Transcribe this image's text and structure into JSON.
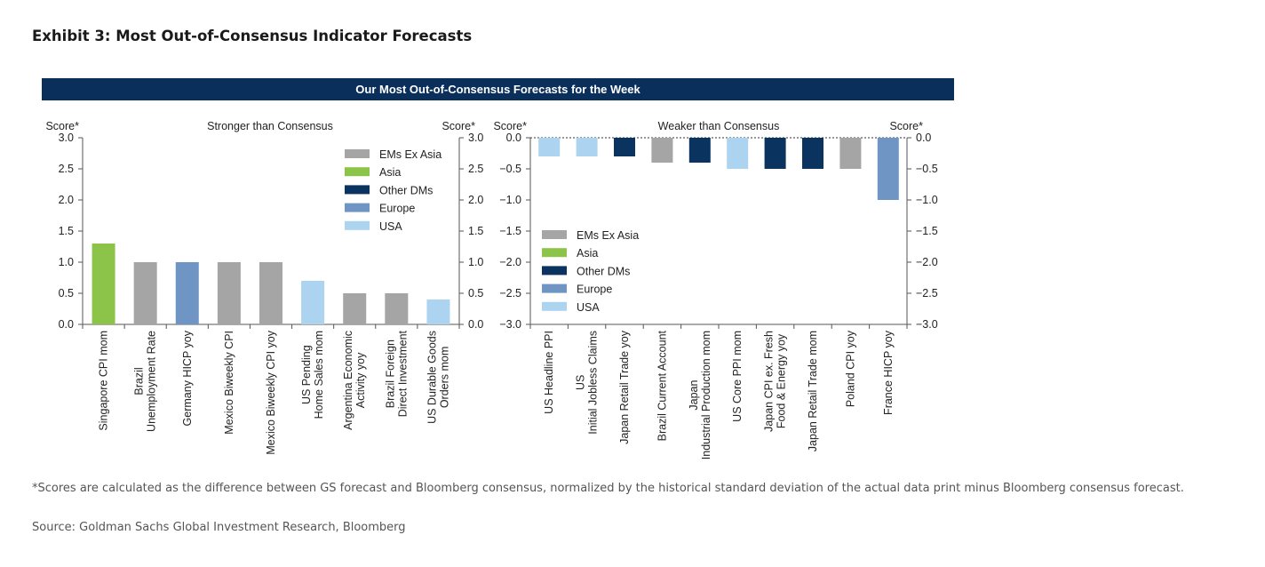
{
  "title": "Exhibit 3: Most Out-of-Consensus Indicator Forecasts",
  "banner": "Our Most Out-of-Consensus Forecasts for the Week",
  "colors": {
    "EMs Ex Asia": "#a5a5a5",
    "Asia": "#8cc449",
    "Other DMs": "#0a3360",
    "Europe": "#6f95c4",
    "USA": "#acd4f1"
  },
  "chart_data": [
    {
      "type": "bar",
      "title": "Stronger than Consensus",
      "ylabel_left": "Score*",
      "ylabel_right": "Score*",
      "ylim": [
        0,
        3
      ],
      "yticks": [
        "0.0",
        "0.5",
        "1.0",
        "1.5",
        "2.0",
        "2.5",
        "3.0"
      ],
      "legend": [
        "EMs Ex Asia",
        "Asia",
        "Other DMs",
        "Europe",
        "USA"
      ],
      "legend_position": "top-right",
      "categories": [
        [
          "Singapore CPI mom"
        ],
        [
          "Brazil",
          "Unemployment Rate"
        ],
        [
          "Germany HICP yoy"
        ],
        [
          "Mexico Biweekly CPI"
        ],
        [
          "Mexico Biweekly CPI yoy"
        ],
        [
          "US Pending",
          "Home Sales mom"
        ],
        [
          "Argentina Economic",
          "Activity yoy"
        ],
        [
          "Brazil Foreign",
          "Direct Investment"
        ],
        [
          "US Durable Goods",
          "Orders mom"
        ]
      ],
      "groups": [
        "Asia",
        "EMs Ex Asia",
        "Europe",
        "EMs Ex Asia",
        "EMs Ex Asia",
        "USA",
        "EMs Ex Asia",
        "EMs Ex Asia",
        "USA"
      ],
      "values": [
        1.3,
        1.0,
        1.0,
        1.0,
        1.0,
        0.7,
        0.5,
        0.5,
        0.4
      ]
    },
    {
      "type": "bar",
      "title": "Weaker than Consensus",
      "ylabel_left": "Score*",
      "ylabel_right": "Score*",
      "ylim": [
        -3,
        0
      ],
      "yticks": [
        "−3.0",
        "−2.5",
        "−2.0",
        "−1.5",
        "−1.0",
        "−0.5",
        "0.0"
      ],
      "legend": [
        "EMs Ex Asia",
        "Asia",
        "Other DMs",
        "Europe",
        "USA"
      ],
      "legend_position": "bottom-left",
      "categories": [
        [
          "US Headline PPI"
        ],
        [
          "US",
          "Initial Jobless Claims"
        ],
        [
          "Japan Retail Trade yoy"
        ],
        [
          "Brazil Current Account"
        ],
        [
          "Japan",
          "Industrial Production mom"
        ],
        [
          "US Core PPI mom"
        ],
        [
          "Japan CPI ex. Fresh",
          "Food & Energy yoy"
        ],
        [
          "Japan Retail Trade mom"
        ],
        [
          "Poland CPI yoy"
        ],
        [
          "France HICP yoy"
        ]
      ],
      "groups": [
        "USA",
        "USA",
        "Other DMs",
        "EMs Ex Asia",
        "Other DMs",
        "USA",
        "Other DMs",
        "Other DMs",
        "EMs Ex Asia",
        "Europe"
      ],
      "values": [
        -0.3,
        -0.3,
        -0.3,
        -0.4,
        -0.4,
        -0.5,
        -0.5,
        -0.5,
        -0.5,
        -1.0
      ]
    }
  ],
  "footnote": "*Scores are calculated as the difference between GS forecast and Bloomberg consensus, normalized by the historical standard deviation of the actual data print minus Bloomberg consensus forecast.",
  "source": "Source: Goldman Sachs Global Investment Research, Bloomberg"
}
